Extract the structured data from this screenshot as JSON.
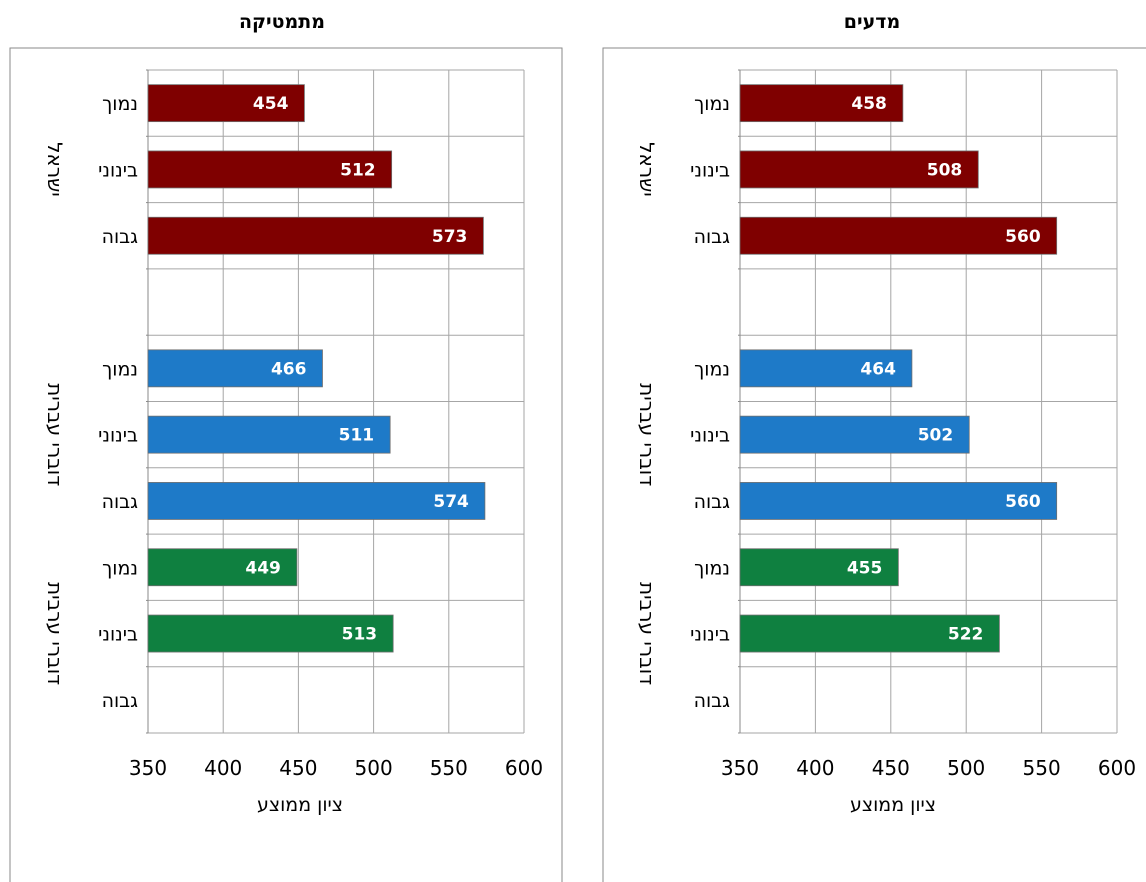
{
  "colors": {
    "israel": "#7f0000",
    "hebrew": "#1e7ac8",
    "arabic": "#0f8040"
  },
  "chart_data": [
    {
      "type": "bar",
      "orientation": "horizontal",
      "title": "מתמטיקה",
      "xlabel": "ציון ממוצע",
      "xlim": [
        350,
        600
      ],
      "xticks": [
        350,
        400,
        450,
        500,
        550,
        600
      ],
      "grid": true,
      "groups": [
        {
          "name": "ישראל",
          "color_key": "israel",
          "categories": [
            "נמוך",
            "בינוני",
            "גבוה"
          ],
          "values": [
            454,
            512,
            573
          ]
        },
        {
          "name": "דוברי עברית",
          "color_key": "hebrew",
          "categories": [
            "נמוך",
            "בינוני",
            "גבוה"
          ],
          "values": [
            466,
            511,
            574
          ]
        },
        {
          "name": "דוברי ערבית",
          "color_key": "arabic",
          "categories": [
            "נמוך",
            "בינוני",
            "גבוה"
          ],
          "values": [
            449,
            513,
            null
          ]
        }
      ]
    },
    {
      "type": "bar",
      "orientation": "horizontal",
      "title": "מדעים",
      "xlabel": "ציון ממוצע",
      "xlim": [
        350,
        600
      ],
      "xticks": [
        350,
        400,
        450,
        500,
        550,
        600
      ],
      "grid": true,
      "groups": [
        {
          "name": "ישראל",
          "color_key": "israel",
          "categories": [
            "נמוך",
            "בינוני",
            "גבוה"
          ],
          "values": [
            458,
            508,
            560
          ]
        },
        {
          "name": "דוברי עברית",
          "color_key": "hebrew",
          "categories": [
            "נמוך",
            "בינוני",
            "גבוה"
          ],
          "values": [
            464,
            502,
            560
          ]
        },
        {
          "name": "דוברי ערבית",
          "color_key": "arabic",
          "categories": [
            "נמוך",
            "בינוני",
            "גבוה"
          ],
          "values": [
            455,
            522,
            null
          ]
        }
      ]
    }
  ]
}
